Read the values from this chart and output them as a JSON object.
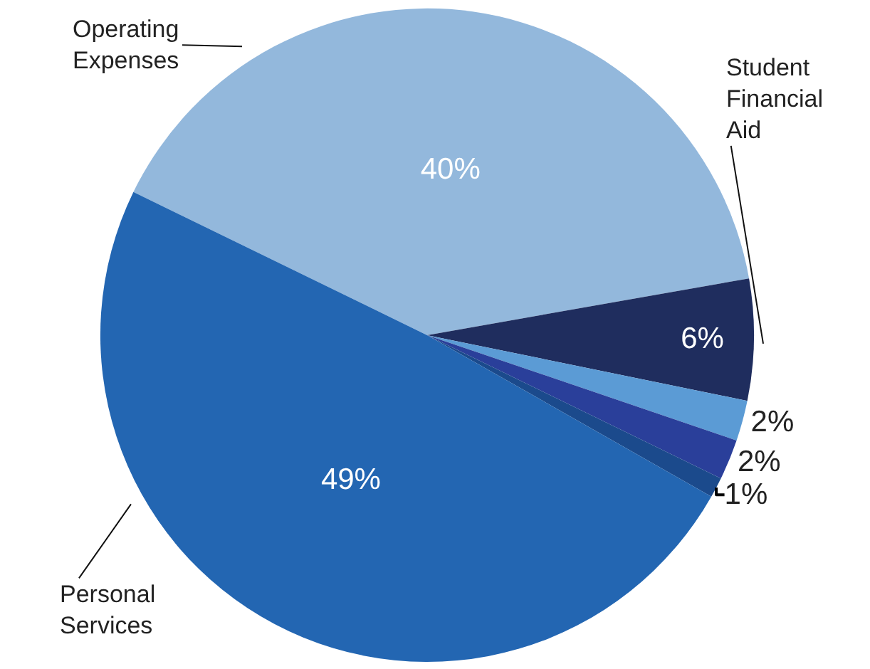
{
  "chart_data": {
    "type": "pie",
    "categories": [
      "Operating Expenses",
      "Student Financial Aid",
      null,
      null,
      null,
      "Personal Services"
    ],
    "values": [
      40,
      6,
      2,
      2,
      1,
      49
    ],
    "colors": [
      "#93b8dc",
      "#1f2d5e",
      "#5b9bd5",
      "#2a3f9a",
      "#1b4a8c",
      "#2366b2"
    ],
    "value_labels": [
      "40%",
      "6%",
      "2%",
      "2%",
      "1%",
      "49%"
    ],
    "legend": false
  }
}
